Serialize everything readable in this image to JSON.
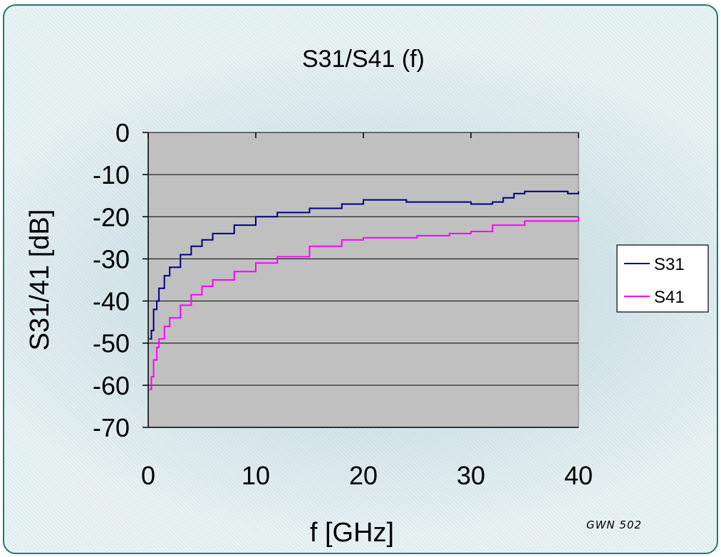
{
  "chart_data": {
    "type": "line",
    "title": "S31/S41 (f)",
    "xlabel": "f [GHz]",
    "ylabel": "S31/41 [dB]",
    "xlim": [
      0,
      40
    ],
    "ylim": [
      -70,
      0
    ],
    "xticks": [
      "0",
      "10",
      "20",
      "30",
      "40"
    ],
    "yticks": [
      "0",
      "-10",
      "-20",
      "-30",
      "-40",
      "-50",
      "-60",
      "-70"
    ],
    "grid": "horizontal",
    "legend_position": "right",
    "series": [
      {
        "name": "S31",
        "color": "#00007f",
        "x": [
          0.1,
          0.3,
          0.5,
          0.8,
          1.0,
          1.5,
          2.0,
          3.0,
          4.0,
          5.0,
          6.0,
          8.0,
          10.0,
          12.0,
          15.0,
          18.0,
          20.0,
          22.0,
          24.0,
          26.0,
          28.0,
          30.0,
          31.0,
          32.0,
          33.0,
          34.0,
          35.0,
          36.0,
          38.0,
          39.0,
          40.0
        ],
        "y": [
          -49,
          -47,
          -42,
          -40,
          -37,
          -34,
          -32,
          -29,
          -27,
          -25.5,
          -24,
          -22,
          -20,
          -19,
          -18,
          -17,
          -16,
          -16,
          -16.5,
          -16.5,
          -16.5,
          -17,
          -17,
          -16.5,
          -15.5,
          -14.5,
          -14,
          -14,
          -14,
          -14.5,
          -14
        ]
      },
      {
        "name": "S41",
        "color": "#ff00ff",
        "x": [
          0.1,
          0.3,
          0.5,
          0.8,
          1.0,
          1.5,
          2.0,
          3.0,
          4.0,
          5.0,
          6.0,
          8.0,
          10.0,
          12.0,
          15.0,
          18.0,
          20.0,
          22.0,
          25.0,
          28.0,
          30.0,
          32.0,
          35.0,
          38.0,
          39.0,
          40.0
        ],
        "y": [
          -61,
          -58,
          -54,
          -51,
          -49,
          -46,
          -44,
          -41,
          -38.5,
          -36.5,
          -35,
          -33,
          -31,
          -29.5,
          -27,
          -25.5,
          -25,
          -25,
          -24.5,
          -24,
          -23.5,
          -22,
          -21,
          -21,
          -21,
          -20
        ]
      }
    ]
  },
  "signature": "GWN 502"
}
